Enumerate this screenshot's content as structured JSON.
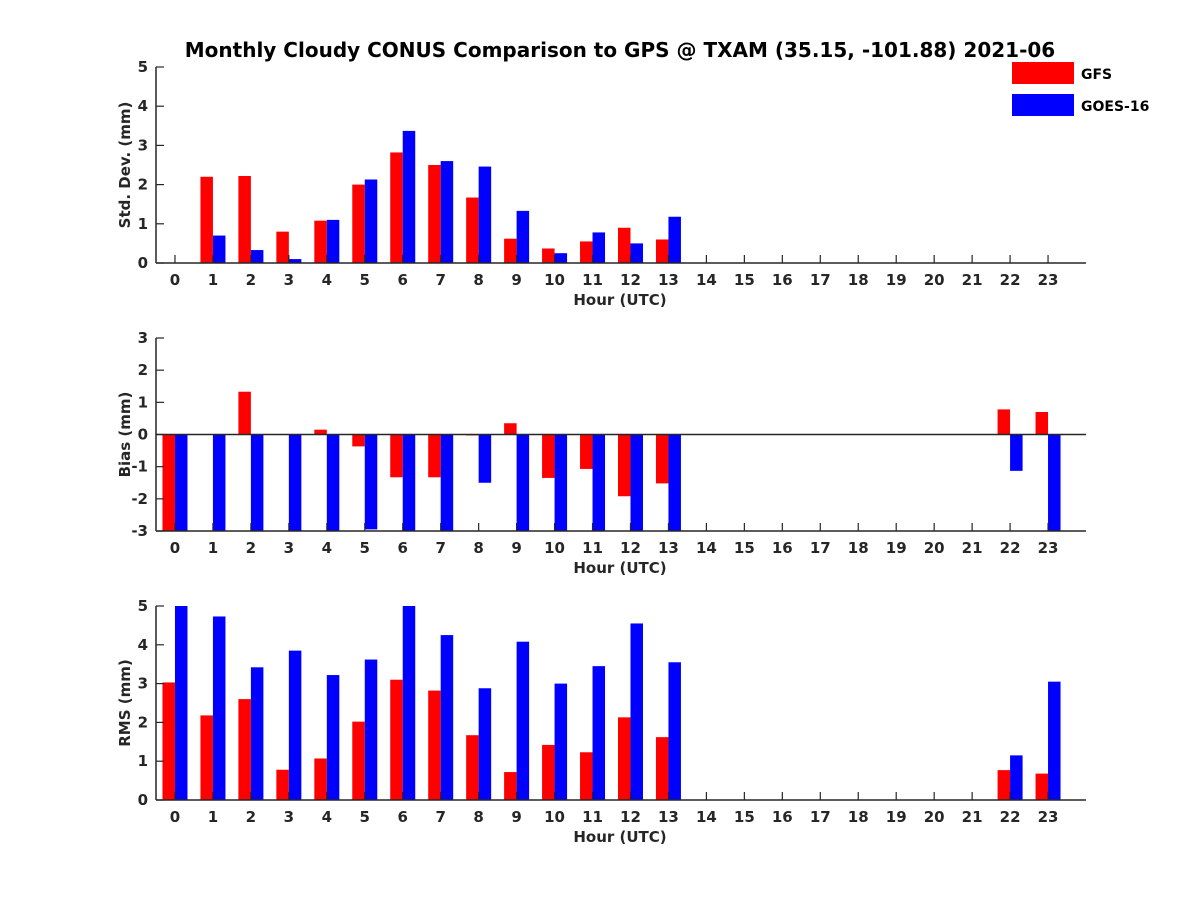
{
  "title": "Monthly Cloudy CONUS Comparison to GPS @ TXAM (35.15, -101.88) 2021-06",
  "legend": [
    {
      "name": "GFS",
      "color": "#ff0000"
    },
    {
      "name": "GOES-16",
      "color": "#0000ff"
    }
  ],
  "chart_data": [
    {
      "type": "bar",
      "xlabel": "Hour (UTC)",
      "ylabel": "Std. Dev. (mm)",
      "ylim": [
        0,
        5
      ],
      "yticks": [
        "0",
        "1",
        "2",
        "3",
        "4",
        "5"
      ],
      "categories": [
        "0",
        "1",
        "2",
        "3",
        "4",
        "5",
        "6",
        "7",
        "8",
        "9",
        "10",
        "11",
        "12",
        "13",
        "14",
        "15",
        "16",
        "17",
        "18",
        "19",
        "20",
        "21",
        "22",
        "23"
      ],
      "series": [
        {
          "name": "GFS",
          "color": "#ff0000",
          "values": [
            null,
            2.2,
            2.22,
            0.8,
            1.08,
            2.0,
            2.82,
            2.5,
            1.67,
            0.62,
            0.37,
            0.55,
            0.9,
            0.6,
            null,
            null,
            null,
            null,
            null,
            null,
            null,
            null,
            null,
            null
          ]
        },
        {
          "name": "GOES-16",
          "color": "#0000ff",
          "values": [
            null,
            0.7,
            0.33,
            0.1,
            1.1,
            2.13,
            3.37,
            2.6,
            2.46,
            1.33,
            0.25,
            0.78,
            0.5,
            1.18,
            null,
            null,
            null,
            null,
            null,
            null,
            null,
            null,
            null,
            null
          ]
        }
      ]
    },
    {
      "type": "bar",
      "xlabel": "Hour (UTC)",
      "ylabel": "Bias (mm)",
      "ylim": [
        -3,
        3
      ],
      "yticks": [
        "-3",
        "-2",
        "-1",
        "0",
        "1",
        "2",
        "3"
      ],
      "categories": [
        "0",
        "1",
        "2",
        "3",
        "4",
        "5",
        "6",
        "7",
        "8",
        "9",
        "10",
        "11",
        "12",
        "13",
        "14",
        "15",
        "16",
        "17",
        "18",
        "19",
        "20",
        "21",
        "22",
        "23"
      ],
      "series": [
        {
          "name": "GFS",
          "color": "#ff0000",
          "values": [
            -3.0,
            null,
            1.33,
            null,
            0.15,
            -0.37,
            -1.33,
            -1.33,
            -0.03,
            0.35,
            -1.35,
            -1.07,
            -1.92,
            -1.52,
            null,
            null,
            null,
            null,
            null,
            null,
            null,
            null,
            0.78,
            0.7
          ]
        },
        {
          "name": "GOES-16",
          "color": "#0000ff",
          "values": [
            -3.0,
            -3.0,
            -3.0,
            -3.0,
            -3.0,
            -2.95,
            -3.0,
            -3.0,
            -1.5,
            -3.0,
            -3.0,
            -3.0,
            -3.0,
            -3.0,
            null,
            null,
            null,
            null,
            null,
            null,
            null,
            null,
            -1.13,
            -3.0
          ]
        }
      ]
    },
    {
      "type": "bar",
      "xlabel": "Hour (UTC)",
      "ylabel": "RMS (mm)",
      "ylim": [
        0,
        5
      ],
      "yticks": [
        "0",
        "1",
        "2",
        "3",
        "4",
        "5"
      ],
      "categories": [
        "0",
        "1",
        "2",
        "3",
        "4",
        "5",
        "6",
        "7",
        "8",
        "9",
        "10",
        "11",
        "12",
        "13",
        "14",
        "15",
        "16",
        "17",
        "18",
        "19",
        "20",
        "21",
        "22",
        "23"
      ],
      "series": [
        {
          "name": "GFS",
          "color": "#ff0000",
          "values": [
            3.03,
            2.18,
            2.6,
            0.78,
            1.07,
            2.02,
            3.1,
            2.82,
            1.67,
            0.72,
            1.42,
            1.23,
            2.13,
            1.62,
            null,
            null,
            null,
            null,
            null,
            null,
            null,
            null,
            0.77,
            0.68
          ]
        },
        {
          "name": "GOES-16",
          "color": "#0000ff",
          "values": [
            5.0,
            4.73,
            3.42,
            3.85,
            3.22,
            3.62,
            5.0,
            4.25,
            2.88,
            4.08,
            3.0,
            3.45,
            4.55,
            3.55,
            null,
            null,
            null,
            null,
            null,
            null,
            null,
            null,
            1.15,
            3.05
          ]
        }
      ]
    }
  ]
}
